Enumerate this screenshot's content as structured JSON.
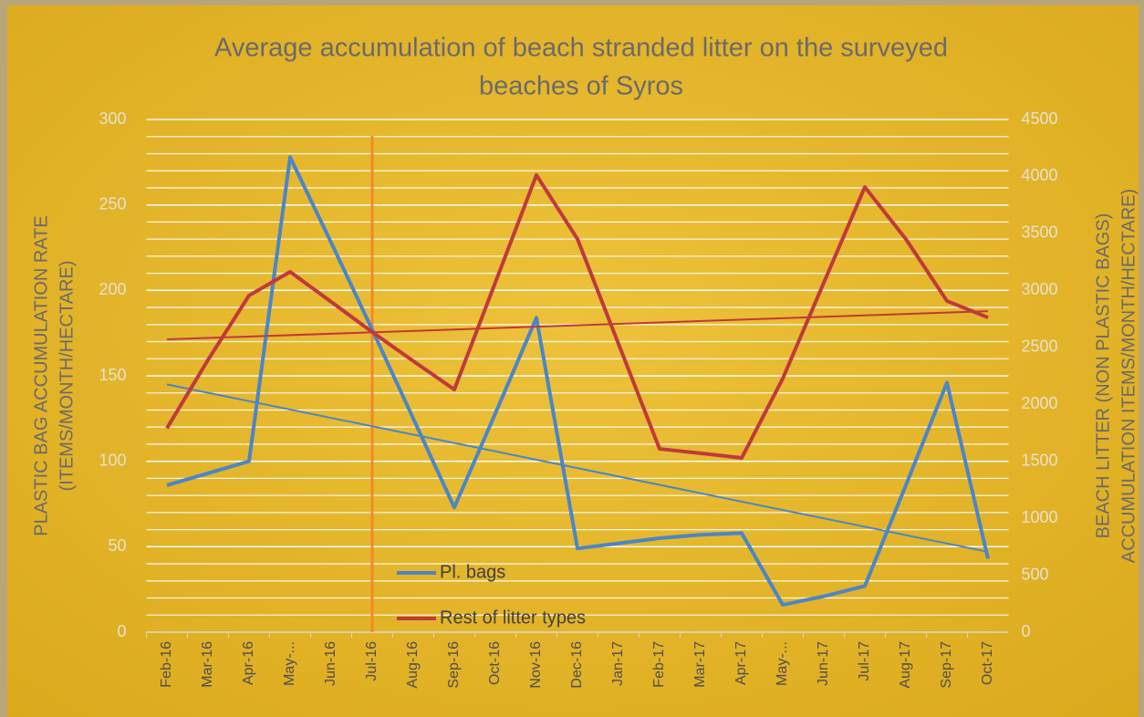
{
  "chart_data": {
    "type": "line",
    "title": [
      "Average accumulation of beach stranded litter on the surveyed",
      "beaches of Syros"
    ],
    "y_label": [
      "PLASTIC BAG ACCUMULATION RATE",
      "(ITEMS/MONTH/HECTARE)"
    ],
    "y2_label": [
      "BEACH  LITTER (NON PLASTIC BAGS)",
      "ACCUMULATION ITEMS/MONTH/HECTARE)"
    ],
    "categories": [
      "Feb-16",
      "Mar-16",
      "Apr-16",
      "May-...",
      "Jun-16",
      "Jul-16",
      "Aug-16",
      "Sep-16",
      "Oct-16",
      "Nov-16",
      "Dec-16",
      "Jan-17",
      "Feb-17",
      "Mar-17",
      "Apr-17",
      "May-...",
      "Jun-17",
      "Jul-17",
      "Aug-17",
      "Sep-17",
      "Oct-17"
    ],
    "series": [
      {
        "name": "Pl. bags",
        "color": "#4a86c8",
        "values": [
          86,
          93,
          100,
          278,
          228,
          177,
          125,
          73,
          128,
          184,
          49,
          52,
          55,
          57,
          58,
          16,
          21,
          27,
          86,
          146,
          43
        ],
        "trend": [
          145,
          47
        ]
      },
      {
        "name": "Rest of litter types",
        "color": "#c0393b",
        "axis": "y2",
        "values": [
          1790,
          2390,
          2955,
          3163,
          2900,
          2634,
          2380,
          2130,
          3070,
          4012,
          3451,
          2530,
          1609,
          1570,
          1529,
          2226,
          3067,
          3907,
          3450,
          2907,
          2762
        ],
        "trend": [
          2570,
          2818
        ]
      }
    ],
    "ylim": [
      0,
      300
    ],
    "yticks": [
      0,
      50,
      100,
      150,
      200,
      250,
      300
    ],
    "y2lim": [
      0,
      4500
    ],
    "y2ticks": [
      0,
      500,
      1000,
      1500,
      2000,
      2500,
      3000,
      3500,
      4000,
      4500
    ],
    "minor_step": 10,
    "grid": true,
    "vline_category": "Jul-16",
    "vline_color": "#f08a2a"
  }
}
